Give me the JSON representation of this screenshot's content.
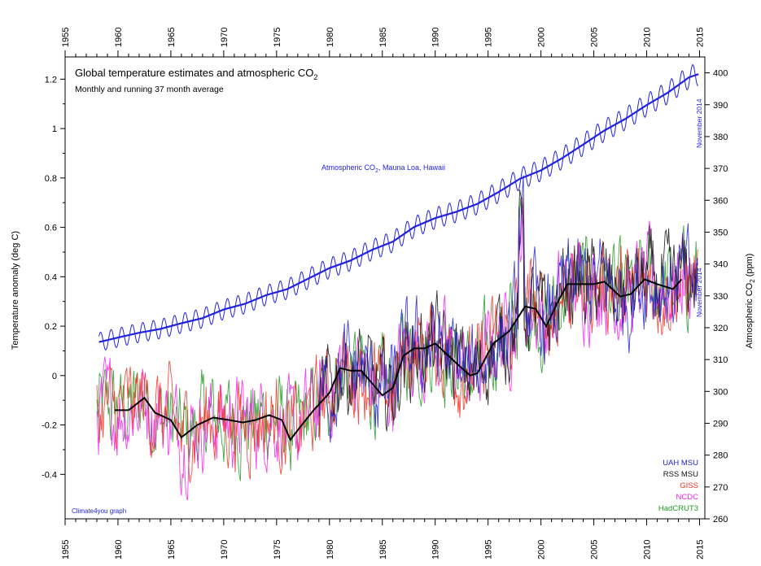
{
  "chart_data": {
    "type": "line",
    "title": "Global temperature estimates and atmospheric CO",
    "title_subscript": "2",
    "subtitle": "Monthly and running 37 month average",
    "ylabel_left": "Temperature anomaly (deg C)",
    "ylabel_right": "Atmospheric CO",
    "ylabel_right_sub": "2",
    "ylabel_right_unit": " (ppm)",
    "co2_label": "Atmospheric CO",
    "co2_label_sub": "2",
    "co2_label_rest": ", Mauna Loa, Hawaii",
    "annotation_top": "November 2014",
    "annotation_mid": "November 2014",
    "credit": "Climate4you graph",
    "grid": false,
    "xlim": [
      1955,
      2015.5
    ],
    "ylim_left": [
      -0.58,
      1.29
    ],
    "ylim_right": [
      260,
      405
    ],
    "x_ticks": [
      "1955",
      "1960",
      "1965",
      "1970",
      "1975",
      "1980",
      "1985",
      "1990",
      "1995",
      "2000",
      "2005",
      "2010",
      "2015"
    ],
    "y_ticks_left": [
      "-0.4",
      "-0.2",
      "0",
      "0.2",
      "0.4",
      "0.6",
      "0.8",
      "1",
      "1.2"
    ],
    "y_ticks_right": [
      "260",
      "270",
      "280",
      "290",
      "300",
      "310",
      "320",
      "330",
      "340",
      "350",
      "360",
      "370",
      "380",
      "390",
      "400"
    ],
    "legend": [
      {
        "name": "UAH MSU",
        "color": "#2222cc"
      },
      {
        "name": "RSS MSU",
        "color": "#111111"
      },
      {
        "name": "GISS",
        "color": "#ee3322"
      },
      {
        "name": "NCDC",
        "color": "#ee22ee"
      },
      {
        "name": "HadCRUT3",
        "color": "#229922"
      }
    ],
    "co2_color": "#2222dd",
    "running_mean_color": "#000000",
    "series": [
      {
        "name": "Atmospheric CO2 (running mean)",
        "axis": "right",
        "x": [
          1958.2,
          1960,
          1962,
          1964,
          1966,
          1968,
          1970,
          1972,
          1974,
          1976,
          1978,
          1980,
          1982,
          1984,
          1986,
          1988,
          1990,
          1992,
          1994,
          1996,
          1998,
          2000,
          2002,
          2004,
          2006,
          2008,
          2010,
          2012,
          2014,
          2014.9
        ],
        "values": [
          315.5,
          316.9,
          318.4,
          319.6,
          321.4,
          323.0,
          325.7,
          327.5,
          330.2,
          332.1,
          335.4,
          338.7,
          341.1,
          344.4,
          347.0,
          351.6,
          354.4,
          356.4,
          358.9,
          362.6,
          366.7,
          369.4,
          373.2,
          377.5,
          381.9,
          385.6,
          389.9,
          393.8,
          398.6,
          399.6
        ]
      },
      {
        "name": "Temperature 37-month running average",
        "axis": "left",
        "x": [
          1959.7,
          1961,
          1962.5,
          1963.5,
          1965,
          1966,
          1967.5,
          1969,
          1970.5,
          1971.8,
          1973,
          1974.3,
          1975.5,
          1976.3,
          1977.2,
          1978.5,
          1980,
          1981,
          1982,
          1983,
          1984,
          1985,
          1986,
          1987,
          1988,
          1989,
          1990,
          1991,
          1992,
          1993.3,
          1994,
          1995.5,
          1997,
          1998.5,
          1999.5,
          2000.5,
          2001.5,
          2002.5,
          2003.5,
          2005,
          2006,
          2007.5,
          2008.5,
          2009.8,
          2011,
          2012.5,
          2013.3
        ],
        "values": [
          -0.14,
          -0.14,
          -0.09,
          -0.15,
          -0.18,
          -0.25,
          -0.2,
          -0.17,
          -0.18,
          -0.19,
          -0.18,
          -0.16,
          -0.18,
          -0.26,
          -0.21,
          -0.14,
          -0.07,
          0.03,
          0.02,
          0.02,
          -0.03,
          -0.08,
          -0.05,
          0.08,
          0.11,
          0.11,
          0.13,
          0.09,
          0.05,
          0.0,
          0.01,
          0.13,
          0.18,
          0.28,
          0.27,
          0.2,
          0.29,
          0.37,
          0.37,
          0.37,
          0.38,
          0.32,
          0.33,
          0.39,
          0.37,
          0.35,
          0.39
        ]
      }
    ],
    "monthly_series_note_values_in_units": "Monthly temperature anomalies for UAH MSU, RSS MSU, GISS, NCDC and HadCRUT3 fluctuate around the running average with roughly ±0.2 deg C spread"
  }
}
